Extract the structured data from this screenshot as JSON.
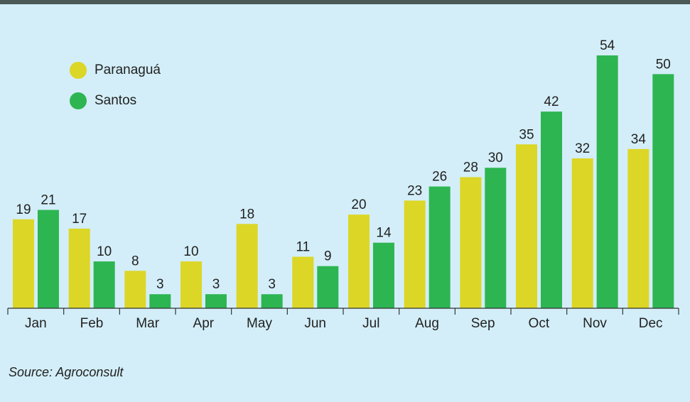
{
  "chart_data": {
    "type": "bar",
    "categories": [
      "Jan",
      "Feb",
      "Mar",
      "Apr",
      "May",
      "Jun",
      "Jul",
      "Aug",
      "Sep",
      "Oct",
      "Nov",
      "Dec"
    ],
    "series": [
      {
        "name": "Paranaguá",
        "color": "#dcd627",
        "values": [
          19,
          17,
          8,
          10,
          18,
          11,
          20,
          23,
          28,
          35,
          32,
          34
        ]
      },
      {
        "name": "Santos",
        "color": "#2db552",
        "values": [
          21,
          10,
          3,
          3,
          3,
          9,
          14,
          26,
          30,
          42,
          54,
          50
        ]
      }
    ],
    "source": "Source: Agroconsult"
  }
}
